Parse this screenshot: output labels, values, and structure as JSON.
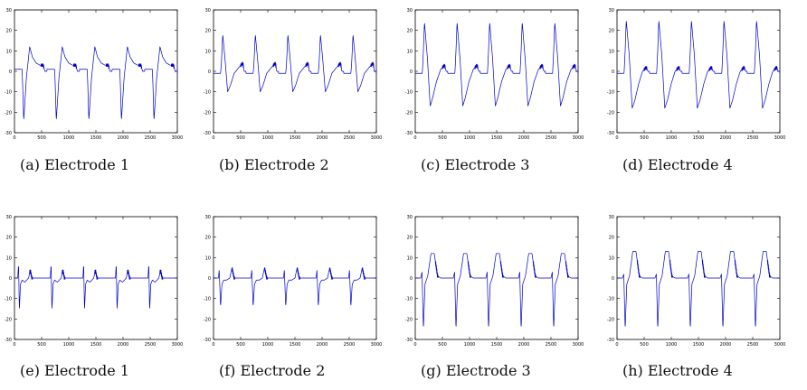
{
  "figure": {
    "colors": {
      "signal": "#0000cc",
      "axis": "#000000",
      "background": "#ffffff"
    },
    "panels": [
      {
        "caption": "(a) Electrode 1"
      },
      {
        "caption": "(b) Electrode 2"
      },
      {
        "caption": "(c) Electrode 3"
      },
      {
        "caption": "(d) Electrode 4"
      },
      {
        "caption": "(e) Electrode 1"
      },
      {
        "caption": "(f) Electrode 2"
      },
      {
        "caption": "(g) Electrode 3"
      },
      {
        "caption": "(h) Electrode 4"
      }
    ]
  },
  "chart_data": [
    {
      "type": "line",
      "title": "",
      "xlabel": "",
      "ylabel": "",
      "xlim": [
        0,
        3000
      ],
      "ylim": [
        -30,
        30
      ],
      "xticks": [
        0,
        500,
        1000,
        1500,
        2000,
        2500,
        3000
      ],
      "yticks": [
        -30,
        -20,
        -10,
        0,
        10,
        20,
        30
      ],
      "grid": false,
      "period": 600,
      "first_beat": 170,
      "x": [
        0,
        140,
        150,
        170,
        220,
        280,
        330,
        400,
        470,
        530,
        560,
        600
      ],
      "y": [
        1,
        1,
        -6,
        -24,
        -3,
        12,
        7,
        4,
        3,
        3,
        0,
        0
      ]
    },
    {
      "type": "line",
      "title": "",
      "xlabel": "",
      "ylabel": "",
      "xlim": [
        0,
        3000
      ],
      "ylim": [
        -30,
        30
      ],
      "xticks": [
        0,
        500,
        1000,
        1500,
        2000,
        2500,
        3000
      ],
      "yticks": [
        -30,
        -20,
        -10,
        0,
        10,
        20,
        30
      ],
      "grid": false,
      "period": 600,
      "first_beat": 170,
      "x": [
        0,
        130,
        145,
        170,
        215,
        260,
        310,
        380,
        470,
        540,
        565,
        600
      ],
      "y": [
        -1,
        -1,
        4,
        18,
        5,
        -10,
        -7,
        -1,
        2,
        4,
        0,
        0
      ]
    },
    {
      "type": "line",
      "title": "",
      "xlabel": "",
      "ylabel": "",
      "xlim": [
        0,
        3000
      ],
      "ylim": [
        -30,
        30
      ],
      "xticks": [
        0,
        500,
        1000,
        1500,
        2000,
        2500,
        3000
      ],
      "yticks": [
        -30,
        -20,
        -10,
        0,
        10,
        20,
        30
      ],
      "grid": false,
      "period": 600,
      "first_beat": 170,
      "x": [
        0,
        130,
        150,
        170,
        225,
        275,
        320,
        390,
        470,
        540,
        570,
        600
      ],
      "y": [
        -1,
        -1,
        10,
        24,
        6,
        -17,
        -13,
        -5,
        1,
        3,
        0,
        0
      ]
    },
    {
      "type": "line",
      "title": "",
      "xlabel": "",
      "ylabel": "",
      "xlim": [
        0,
        3000
      ],
      "ylim": [
        -30,
        30
      ],
      "xticks": [
        0,
        500,
        1000,
        1500,
        2000,
        2500,
        3000
      ],
      "yticks": [
        -30,
        -20,
        -10,
        0,
        10,
        20,
        30
      ],
      "grid": false,
      "period": 600,
      "first_beat": 170,
      "x": [
        0,
        130,
        150,
        170,
        225,
        280,
        330,
        400,
        470,
        540,
        570,
        600
      ],
      "y": [
        -1,
        -1,
        10,
        25,
        8,
        -18,
        -14,
        -6,
        0,
        2,
        0,
        0
      ]
    },
    {
      "type": "line",
      "title": "",
      "xlabel": "",
      "ylabel": "",
      "xlim": [
        0,
        3000
      ],
      "ylim": [
        -30,
        30
      ],
      "xticks": [
        0,
        500,
        1000,
        1500,
        2000,
        2500,
        3000
      ],
      "yticks": [
        -30,
        -20,
        -10,
        0,
        10,
        20,
        30
      ],
      "grid": false,
      "period": 600,
      "first_beat": 130,
      "x": [
        0,
        100,
        115,
        130,
        150,
        180,
        230,
        300,
        330,
        360,
        420,
        600
      ],
      "y": [
        0,
        0,
        7,
        -16,
        -3,
        -1,
        -2,
        0,
        4,
        0,
        0,
        0
      ]
    },
    {
      "type": "line",
      "title": "",
      "xlabel": "",
      "ylabel": "",
      "xlim": [
        0,
        3000
      ],
      "ylim": [
        -30,
        30
      ],
      "xticks": [
        0,
        500,
        1000,
        1500,
        2000,
        2500,
        3000
      ],
      "yticks": [
        -30,
        -20,
        -10,
        0,
        10,
        20,
        30
      ],
      "grid": false,
      "period": 600,
      "first_beat": 150,
      "x": [
        0,
        110,
        125,
        150,
        175,
        210,
        260,
        320,
        360,
        400,
        460,
        600
      ],
      "y": [
        0,
        0,
        4,
        -14,
        -3,
        -1,
        -1,
        0,
        5,
        0,
        0,
        0
      ]
    },
    {
      "type": "line",
      "title": "",
      "xlabel": "",
      "ylabel": "",
      "xlim": [
        0,
        3000
      ],
      "ylim": [
        -30,
        30
      ],
      "xticks": [
        0,
        500,
        1000,
        1500,
        2000,
        2500,
        3000
      ],
      "yticks": [
        -30,
        -20,
        -10,
        0,
        10,
        20,
        30
      ],
      "grid": false,
      "period": 600,
      "first_beat": 160,
      "x": [
        0,
        110,
        135,
        160,
        190,
        240,
        300,
        360,
        420,
        480,
        600
      ],
      "y": [
        0,
        0,
        3,
        -25,
        -3,
        1,
        12,
        12,
        1,
        0,
        0
      ]
    },
    {
      "type": "line",
      "title": "",
      "xlabel": "",
      "ylabel": "",
      "xlim": [
        0,
        3000
      ],
      "ylim": [
        -30,
        30
      ],
      "xticks": [
        0,
        500,
        1000,
        1500,
        2000,
        2500,
        3000
      ],
      "yticks": [
        -30,
        -20,
        -10,
        0,
        10,
        20,
        30
      ],
      "grid": false,
      "period": 600,
      "first_beat": 160,
      "x": [
        0,
        110,
        135,
        160,
        190,
        240,
        300,
        360,
        420,
        480,
        600
      ],
      "y": [
        0,
        0,
        2,
        -25,
        -3,
        1,
        13,
        13,
        1,
        0,
        0
      ]
    }
  ]
}
